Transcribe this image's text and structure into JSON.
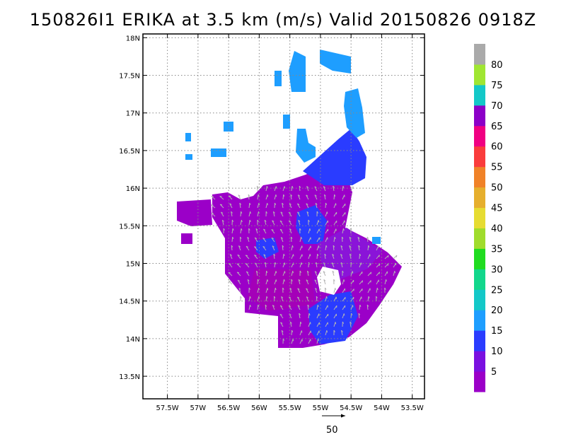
{
  "chart_data": {
    "type": "heatmap",
    "title": "150826I1 ERIKA at 3.5 km (m/s) Valid 20150826 0918Z",
    "x_ticks": [
      "57.5W",
      "57W",
      "56.5W",
      "56W",
      "55.5W",
      "55W",
      "54.5W",
      "54W",
      "53.5W"
    ],
    "y_ticks": [
      "13.5N",
      "14N",
      "14.5N",
      "15N",
      "15.5N",
      "16N",
      "16.5N",
      "17N",
      "17.5N",
      "18N"
    ],
    "lon_range": [
      -57.9,
      -53.3
    ],
    "lat_range": [
      13.2,
      18.05
    ],
    "grid": true,
    "colorbar": {
      "labels": [
        "5",
        "10",
        "15",
        "20",
        "25",
        "30",
        "35",
        "40",
        "45",
        "50",
        "55",
        "60",
        "65",
        "70",
        "75",
        "80"
      ],
      "colors": [
        "#9b00c8",
        "#7a10e0",
        "#2a3cff",
        "#1e9eff",
        "#14c8c8",
        "#12d78c",
        "#20dc20",
        "#a0dc2c",
        "#e6dc32",
        "#e6af2d",
        "#f08228",
        "#fa3c3c",
        "#f00082",
        "#8c00c8",
        "#14c8c8",
        "#a0e632",
        "#aaaaaa"
      ]
    },
    "wind_vector_scale_label": "50"
  }
}
